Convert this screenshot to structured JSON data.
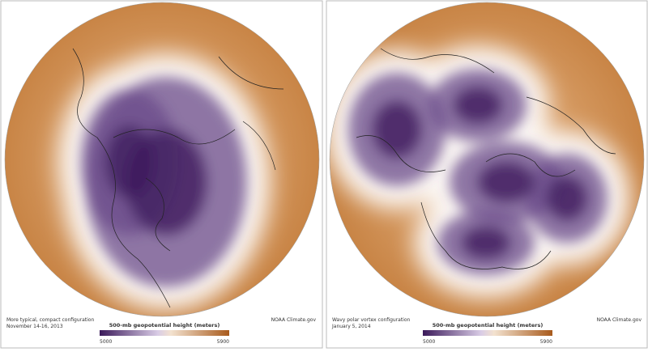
{
  "panels": [
    {
      "caption": "More typical, compact configuration",
      "date": "November 14-16, 2013",
      "colorbar": {
        "label": "500-mb geopotential height (meters)",
        "min": "5000",
        "max": "5900"
      },
      "credit": "NOAA Climate.gov"
    },
    {
      "caption": "Wavy polar vortex configuration",
      "date": "January 5, 2014",
      "colorbar": {
        "label": "500-mb geopotential height (meters)",
        "min": "5000",
        "max": "5900"
      },
      "credit": "NOAA Climate.gov"
    }
  ]
}
